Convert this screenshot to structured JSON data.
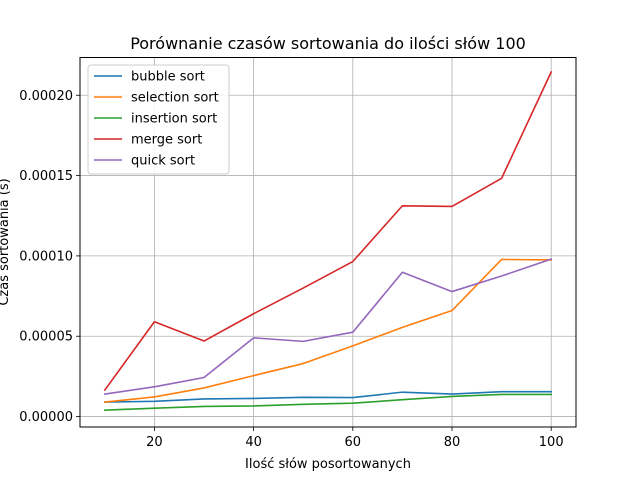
{
  "chart_data": {
    "type": "line",
    "title": "Porównanie czasów sortowania do ilości słów 100",
    "xlabel": "Ilość słów posortowanych",
    "ylabel": "Czas sortowania (s)",
    "xlim": [
      5,
      105
    ],
    "ylim": [
      -6.5e-06,
      0.0002235
    ],
    "xticks": [
      20,
      40,
      60,
      80,
      100
    ],
    "xtick_labels": [
      "20",
      "40",
      "60",
      "80",
      "100"
    ],
    "yticks": [
      0,
      5e-05,
      0.0001,
      0.00015,
      0.0002
    ],
    "ytick_labels": [
      "0.00000",
      "0.00005",
      "0.00010",
      "0.00015",
      "0.00020"
    ],
    "grid": true,
    "legend_position": "top-left",
    "x": [
      10,
      20,
      30,
      40,
      50,
      60,
      70,
      80,
      90,
      100
    ],
    "series": [
      {
        "name": "bubble sort",
        "color": "#1f77b4",
        "values": [
          9e-06,
          9.5e-06,
          1.1e-05,
          1.13e-05,
          1.2e-05,
          1.18e-05,
          1.52e-05,
          1.4e-05,
          1.55e-05,
          1.55e-05
        ]
      },
      {
        "name": "selection sort",
        "color": "#ff7f0e",
        "values": [
          9e-06,
          1.22e-05,
          1.78e-05,
          2.55e-05,
          3.3e-05,
          4.4e-05,
          5.55e-05,
          6.6e-05,
          9.78e-05,
          9.75e-05
        ]
      },
      {
        "name": "insertion sort",
        "color": "#2ca02c",
        "values": [
          4e-06,
          5.2e-06,
          6.3e-06,
          6.6e-06,
          7.6e-06,
          8.3e-06,
          1.05e-05,
          1.25e-05,
          1.38e-05,
          1.38e-05
        ]
      },
      {
        "name": "merge sort",
        "color": "#d62728",
        "values": [
          1.65e-05,
          5.9e-05,
          4.7e-05,
          6.4e-05,
          8e-05,
          9.65e-05,
          0.0001312,
          0.0001308,
          0.0001483,
          0.0002145
        ]
      },
      {
        "name": "quick sort",
        "color": "#9467bd",
        "values": [
          1.4e-05,
          1.85e-05,
          2.43e-05,
          4.9e-05,
          4.68e-05,
          5.25e-05,
          8.98e-05,
          7.78e-05,
          8.75e-05,
          9.8e-05
        ]
      }
    ]
  }
}
